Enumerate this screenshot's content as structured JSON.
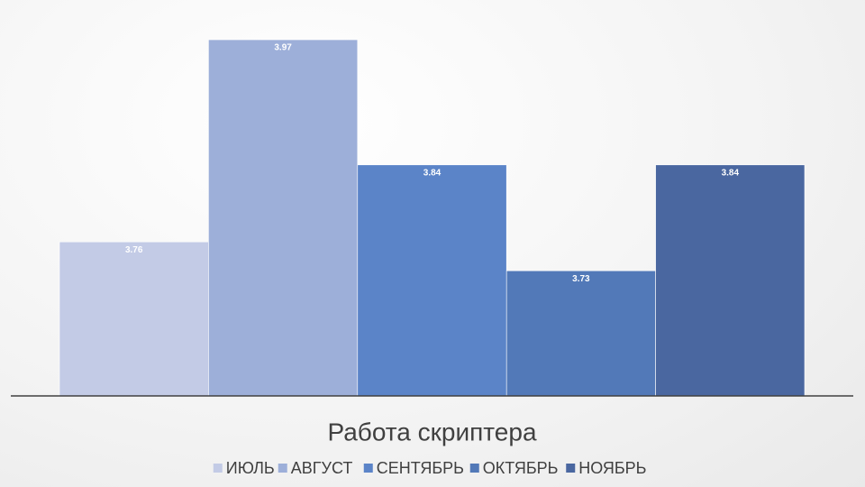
{
  "chart_data": {
    "type": "bar",
    "categories": [
      "Работа скриптера"
    ],
    "series": [
      {
        "name": "ИЮЛЬ",
        "color": "#c3cbe6",
        "values": [
          3.76
        ]
      },
      {
        "name": "АВГУСТ",
        "color": "#9dafd9",
        "values": [
          3.97
        ]
      },
      {
        "name": "СЕНТЯБРЬ",
        "color": "#5b84c8",
        "values": [
          3.84
        ]
      },
      {
        "name": "ОКТЯБРЬ",
        "color": "#5279b8",
        "values": [
          3.73
        ]
      },
      {
        "name": "НОЯБРЬ",
        "color": "#4a67a0",
        "values": [
          3.84
        ]
      }
    ],
    "ylim": [
      3.6,
      4.0
    ],
    "legend": "bottom"
  }
}
